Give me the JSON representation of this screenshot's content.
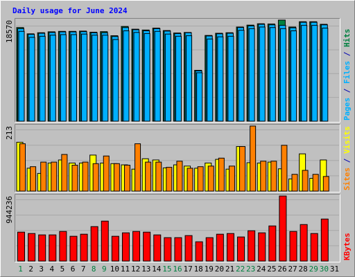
{
  "title": "Daily usage for June 2024",
  "chart_data": {
    "type": "bar",
    "title": "Daily usage for June 2024",
    "categories": [
      "1",
      "2",
      "3",
      "4",
      "5",
      "6",
      "7",
      "8",
      "9",
      "10",
      "11",
      "12",
      "13",
      "14",
      "15",
      "16",
      "17",
      "18",
      "19",
      "20",
      "21",
      "22",
      "23",
      "24",
      "25",
      "26",
      "27",
      "28",
      "29",
      "30",
      "31"
    ],
    "weekend_days": [
      "1",
      "8",
      "9",
      "15",
      "16",
      "22",
      "23",
      "29",
      "30"
    ],
    "panels": [
      {
        "id": "hits",
        "ymax_label": "18570",
        "ymax": 18570,
        "legend": [
          {
            "text": "Pages",
            "color": "#00b0ff"
          },
          {
            "text": "/",
            "color": "#0000b0"
          },
          {
            "text": "Files",
            "color": "#00b0ff"
          },
          {
            "text": "/",
            "color": "#0000b0"
          },
          {
            "text": "Hits",
            "color": "#008040"
          }
        ],
        "series": [
          {
            "name": "Hits",
            "color": "#008040",
            "values": [
              17200,
              16050,
              16250,
              16420,
              16500,
              16500,
              16550,
              16350,
              16450,
              15700,
              17400,
              16900,
              16750,
              17100,
              16650,
              16200,
              16300,
              9350,
              15750,
              16150,
              16250,
              17300,
              17650,
              17900,
              17850,
              18570,
              17300,
              18270,
              18270,
              17800,
              null
            ]
          },
          {
            "name": "Files",
            "color": "#00b0ff",
            "values": [
              17000,
              15950,
              16150,
              16300,
              16400,
              16400,
              16450,
              16250,
              16250,
              15550,
              17200,
              16800,
              16600,
              17000,
              16550,
              16100,
              16250,
              9250,
              15650,
              16050,
              16150,
              17200,
              17500,
              17800,
              17700,
              17600,
              17150,
              18170,
              18170,
              17700,
              null
            ]
          },
          {
            "name": "Pages",
            "color": "#00b0ff",
            "values": [
              16500,
              15400,
              15600,
              15800,
              15900,
              15900,
              16000,
              15800,
              15800,
              15000,
              16600,
              16300,
              16100,
              16500,
              16000,
              15600,
              15700,
              8900,
              15100,
              15500,
              15600,
              16700,
              17000,
              17300,
              17200,
              17000,
              16600,
              17600,
              17600,
              17100,
              null
            ]
          }
        ]
      },
      {
        "id": "sites-visits",
        "ymax_label": "213",
        "ymax": 213,
        "legend": [
          {
            "text": "Sites",
            "color": "#ff8000"
          },
          {
            "text": "/",
            "color": "#0000b0"
          },
          {
            "text": "Visits",
            "color": "#ffff00"
          }
        ],
        "series": [
          {
            "name": "Visits",
            "color": "#ffff00",
            "values": [
              160,
              75,
              58,
              92,
              102,
              92,
              92,
              118,
              92,
              90,
              86,
              72,
              106,
              102,
              76,
              86,
              82,
              75,
              92,
              104,
              72,
              146,
              93,
              92,
              95,
              73,
              40,
              122,
              42,
              102,
              null
            ]
          },
          {
            "name": "Sites",
            "color": "#ff8000",
            "values": [
              155,
              80,
              95,
              95,
              120,
              85,
              95,
              90,
              115,
              90,
              85,
              155,
              95,
              95,
              78,
              98,
              75,
              80,
              82,
              108,
              82,
              146,
              213,
              98,
              98,
              150,
              55,
              68,
              55,
              48,
              null
            ]
          }
        ]
      },
      {
        "id": "kbytes",
        "ymax_label": "944236",
        "ymax": 944236,
        "legend": [
          {
            "text": "KBytes",
            "color": "#ff0000"
          }
        ],
        "series": [
          {
            "name": "KBytes",
            "color": "#ff0000",
            "values": [
              420000,
              400000,
              380000,
              380000,
              430000,
              360000,
              390000,
              500000,
              580000,
              360000,
              410000,
              430000,
              420000,
              380000,
              340000,
              340000,
              370000,
              280000,
              340000,
              390000,
              400000,
              350000,
              440000,
              410000,
              510000,
              944000,
              430000,
              530000,
              400000,
              610000,
              null
            ]
          }
        ]
      }
    ]
  }
}
